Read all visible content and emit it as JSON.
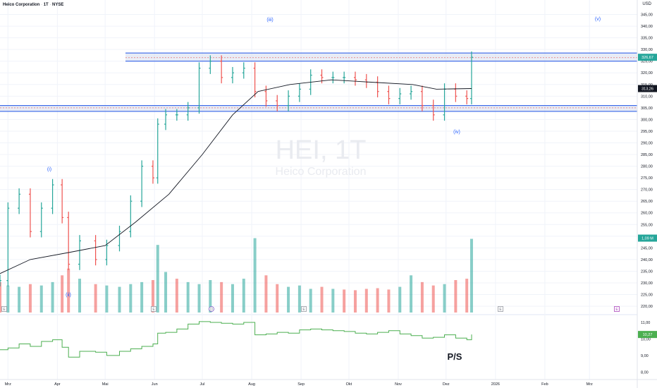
{
  "header": {
    "name": "Heico Corporation",
    "interval": "1T",
    "exchange": "NYSE",
    "separator": " · "
  },
  "currency": "USD",
  "watermark": {
    "ticker": "HEI, 1T",
    "name": "Heico Corporation"
  },
  "price_axis": {
    "ticks": [
      "345,00",
      "340,00",
      "335,00",
      "330,00",
      "325,00",
      "320,00",
      "315,00",
      "310,00",
      "305,00",
      "300,00",
      "295,00",
      "290,00",
      "285,00",
      "280,00",
      "275,00",
      "270,00",
      "265,00",
      "260,00",
      "255,00",
      "250,00",
      "245,00",
      "240,00",
      "235,00",
      "230,00",
      "225,00",
      "220,00"
    ]
  },
  "badges": {
    "last_price": "326,67",
    "ma": "313,26",
    "volume": "1,09 M",
    "ps": "10,27"
  },
  "ps_axis": {
    "ticks": [
      "11,00",
      "10,00",
      "9,00",
      "8,00"
    ]
  },
  "time_axis": [
    "Mrz",
    "Apr",
    "Mai",
    "Jun",
    "Jul",
    "Aug",
    "Sep",
    "Okt",
    "Nov",
    "Dez",
    "2026",
    "Feb",
    "Mrz"
  ],
  "wave_labels": [
    "(i)",
    "(ii)",
    "(iii)",
    "(iv)",
    "(v)"
  ],
  "event_markers": [
    "E",
    "E",
    "D",
    "E",
    "E",
    "E"
  ],
  "ps_label": "P/S",
  "colors": {
    "up": "#26a69a",
    "down": "#ef5350",
    "zone_line": "#1e53e5",
    "zone_fill": "#d9dff0",
    "ps_line": "#4caf50",
    "ma_line": "#131722",
    "wave_text": "#2962ff"
  },
  "chart_data": {
    "type": "ohlc",
    "symbol": "HEI",
    "x_range": [
      "2025-02-24",
      "2026-03-31"
    ],
    "price_range": [
      217,
      350
    ],
    "zones": [
      {
        "low": 325,
        "high": 328.5,
        "dotted": 326.5
      },
      {
        "low": 303.5,
        "high": 306,
        "dotted": 305
      }
    ],
    "price_series": [
      [
        "2025-02-24",
        231
      ],
      [
        "2025-03-01",
        262
      ],
      [
        "2025-03-08",
        268
      ],
      [
        "2025-03-15",
        252
      ],
      [
        "2025-03-22",
        262
      ],
      [
        "2025-03-29",
        272
      ],
      [
        "2025-04-04",
        258
      ],
      [
        "2025-04-08",
        238
      ],
      [
        "2025-04-15",
        248
      ],
      [
        "2025-04-25",
        240
      ],
      [
        "2025-05-02",
        246
      ],
      [
        "2025-05-10",
        252
      ],
      [
        "2025-05-17",
        265
      ],
      [
        "2025-05-24",
        280
      ],
      [
        "2025-05-31",
        275
      ],
      [
        "2025-06-03",
        298
      ],
      [
        "2025-06-08",
        302
      ],
      [
        "2025-06-15",
        302
      ],
      [
        "2025-06-22",
        305
      ],
      [
        "2025-06-29",
        322
      ],
      [
        "2025-07-06",
        325
      ],
      [
        "2025-07-13",
        318
      ],
      [
        "2025-07-20",
        320
      ],
      [
        "2025-07-27",
        322
      ],
      [
        "2025-08-03",
        312
      ],
      [
        "2025-08-10",
        308
      ],
      [
        "2025-08-17",
        306
      ],
      [
        "2025-08-24",
        310
      ],
      [
        "2025-08-31",
        313
      ],
      [
        "2025-09-07",
        319
      ],
      [
        "2025-09-14",
        318
      ],
      [
        "2025-09-21",
        318
      ],
      [
        "2025-09-28",
        318
      ],
      [
        "2025-10-05",
        317
      ],
      [
        "2025-10-12",
        316
      ],
      [
        "2025-10-19",
        312
      ],
      [
        "2025-10-26",
        309
      ],
      [
        "2025-11-02",
        311
      ],
      [
        "2025-11-09",
        312
      ],
      [
        "2025-11-16",
        306
      ],
      [
        "2025-11-23",
        302
      ],
      [
        "2025-11-30",
        313
      ],
      [
        "2025-12-07",
        310
      ],
      [
        "2025-12-14",
        309
      ],
      [
        "2025-12-17",
        326.67
      ]
    ],
    "ma_series": [
      [
        "2025-02-24",
        234
      ],
      [
        "2025-03-15",
        240
      ],
      [
        "2025-04-08",
        243
      ],
      [
        "2025-05-01",
        246
      ],
      [
        "2025-05-20",
        256
      ],
      [
        "2025-06-10",
        268
      ],
      [
        "2025-07-01",
        285
      ],
      [
        "2025-07-20",
        302
      ],
      [
        "2025-08-05",
        312
      ],
      [
        "2025-08-25",
        315
      ],
      [
        "2025-09-20",
        317
      ],
      [
        "2025-10-15",
        316
      ],
      [
        "2025-11-10",
        315
      ],
      [
        "2025-11-25",
        313
      ],
      [
        "2025-12-17",
        313.26
      ]
    ],
    "volume_millions": {
      "range": [
        0,
        1.2
      ],
      "last": 1.09,
      "dates": [
        "2025-02-24",
        "2025-03-01",
        "2025-03-08",
        "2025-03-15",
        "2025-03-22",
        "2025-03-29",
        "2025-04-04",
        "2025-04-08",
        "2025-04-15",
        "2025-04-25",
        "2025-05-02",
        "2025-05-10",
        "2025-05-17",
        "2025-05-24",
        "2025-05-31",
        "2025-06-03",
        "2025-06-08",
        "2025-06-15",
        "2025-06-22",
        "2025-06-29",
        "2025-07-06",
        "2025-07-13",
        "2025-07-20",
        "2025-07-27",
        "2025-08-03",
        "2025-08-10",
        "2025-08-17",
        "2025-08-24",
        "2025-08-31",
        "2025-09-07",
        "2025-09-14",
        "2025-09-21",
        "2025-09-28",
        "2025-10-05",
        "2025-10-12",
        "2025-10-19",
        "2025-10-26",
        "2025-11-02",
        "2025-11-09",
        "2025-11-16",
        "2025-11-23",
        "2025-11-30",
        "2025-12-07",
        "2025-12-14",
        "2025-12-17"
      ],
      "values": [
        0.45,
        0.4,
        0.38,
        0.42,
        0.4,
        0.45,
        0.55,
        0.65,
        0.5,
        0.42,
        0.4,
        0.38,
        0.42,
        0.45,
        0.48,
        1.0,
        0.6,
        0.5,
        0.45,
        0.42,
        0.48,
        0.45,
        0.42,
        0.5,
        1.1,
        0.55,
        0.42,
        0.38,
        0.4,
        0.35,
        0.38,
        0.35,
        0.34,
        0.33,
        0.35,
        0.36,
        0.34,
        0.38,
        0.55,
        0.45,
        0.4,
        0.42,
        0.48,
        0.5,
        1.09
      ],
      "up": [
        false,
        true,
        true,
        false,
        true,
        true,
        false,
        false,
        true,
        false,
        true,
        true,
        true,
        true,
        false,
        true,
        true,
        false,
        true,
        true,
        true,
        false,
        true,
        true,
        true,
        false,
        false,
        true,
        true,
        true,
        false,
        true,
        false,
        false,
        false,
        false,
        false,
        true,
        true,
        false,
        false,
        true,
        false,
        false,
        true
      ]
    },
    "ps_series": {
      "range": [
        7.8,
        11.3
      ],
      "last": 10.27,
      "points": [
        [
          "2025-02-24",
          9.35
        ],
        [
          "2025-03-01",
          9.45
        ],
        [
          "2025-03-08",
          9.7
        ],
        [
          "2025-03-15",
          9.55
        ],
        [
          "2025-03-22",
          9.85
        ],
        [
          "2025-03-29",
          9.95
        ],
        [
          "2025-04-04",
          9.5
        ],
        [
          "2025-04-08",
          8.9
        ],
        [
          "2025-04-15",
          9.25
        ],
        [
          "2025-04-25",
          9.2
        ],
        [
          "2025-05-02",
          9.0
        ],
        [
          "2025-05-10",
          9.25
        ],
        [
          "2025-05-17",
          9.4
        ],
        [
          "2025-05-24",
          9.55
        ],
        [
          "2025-05-31",
          9.7
        ],
        [
          "2025-06-03",
          10.35
        ],
        [
          "2025-06-08",
          10.4
        ],
        [
          "2025-06-15",
          10.6
        ],
        [
          "2025-06-22",
          10.9
        ],
        [
          "2025-06-29",
          11.05
        ],
        [
          "2025-07-06",
          11.0
        ],
        [
          "2025-07-13",
          10.95
        ],
        [
          "2025-07-20",
          10.9
        ],
        [
          "2025-07-27",
          11.0
        ],
        [
          "2025-08-03",
          10.25
        ],
        [
          "2025-08-10",
          10.3
        ],
        [
          "2025-08-17",
          10.4
        ],
        [
          "2025-08-24",
          10.35
        ],
        [
          "2025-08-31",
          10.55
        ],
        [
          "2025-09-07",
          10.6
        ],
        [
          "2025-09-14",
          10.55
        ],
        [
          "2025-09-21",
          10.5
        ],
        [
          "2025-09-28",
          10.45
        ],
        [
          "2025-10-05",
          10.35
        ],
        [
          "2025-10-12",
          10.3
        ],
        [
          "2025-10-19",
          10.4
        ],
        [
          "2025-10-26",
          10.5
        ],
        [
          "2025-11-02",
          10.3
        ],
        [
          "2025-11-09",
          10.2
        ],
        [
          "2025-11-16",
          10.05
        ],
        [
          "2025-11-23",
          10.1
        ],
        [
          "2025-11-30",
          10.25
        ],
        [
          "2025-12-07",
          10.05
        ],
        [
          "2025-12-14",
          9.95
        ],
        [
          "2025-12-17",
          10.27
        ]
      ]
    }
  }
}
